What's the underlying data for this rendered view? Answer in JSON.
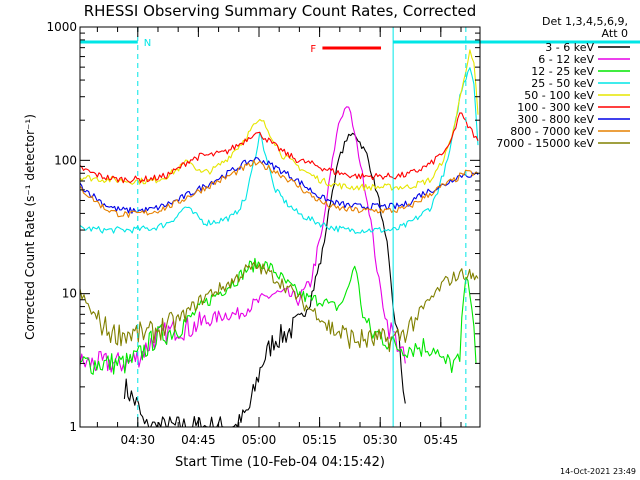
{
  "chart_data": {
    "type": "line",
    "title": "RHESSI Observing Summary Count Rates, Corrected",
    "ylabel": "Corrected Count Rate (s⁻¹ detector⁻¹)",
    "xlabel": "Start Time (10-Feb-04 04:15:42)",
    "x_units": "minutes after 04:15:42",
    "xlim": [
      0,
      99
    ],
    "ylim": [
      1,
      1000
    ],
    "yscale": "log",
    "x_ticks": [
      {
        "label": "04:30",
        "value": 14.3
      },
      {
        "label": "04:45",
        "value": 29.3
      },
      {
        "label": "05:00",
        "value": 44.3
      },
      {
        "label": "05:15",
        "value": 59.3
      },
      {
        "label": "05:30",
        "value": 74.3
      },
      {
        "label": "05:45",
        "value": 89.3
      }
    ],
    "y_ticks": [
      {
        "label": "1",
        "value": 1
      },
      {
        "label": "10",
        "value": 10
      },
      {
        "label": "100",
        "value": 100
      },
      {
        "label": "1000",
        "value": 1000
      }
    ],
    "legend": {
      "header": [
        "Det 1,3,4,5,6,9,",
        "Att 0"
      ],
      "placement": "right"
    },
    "series": [
      {
        "name": "3 - 6 keV",
        "color": "#000000",
        "x": [
          11,
          14,
          16,
          18,
          20,
          24,
          27,
          30,
          33,
          36,
          39,
          42,
          45,
          48,
          51,
          54,
          57,
          60,
          62,
          64,
          66,
          68,
          71,
          74,
          76,
          77.5,
          79,
          80.5
        ],
        "y": [
          2,
          1.5,
          1,
          1,
          1,
          1,
          1,
          1,
          1,
          1,
          1,
          1.4,
          3,
          4.5,
          5,
          6,
          9,
          20,
          50,
          100,
          145,
          160,
          110,
          50,
          22,
          8,
          4,
          1.5
        ]
      },
      {
        "name": "6 - 12 keV",
        "color": "#e600e6",
        "x": [
          0,
          3,
          6,
          9,
          12,
          15,
          18,
          21,
          24,
          27,
          30,
          33,
          36,
          39,
          42,
          45,
          48,
          51,
          54,
          57,
          60,
          62,
          64,
          66,
          67,
          69,
          72,
          74,
          76,
          77.5,
          79,
          80.5
        ],
        "y": [
          3,
          3,
          3,
          3,
          3,
          3.5,
          4.5,
          5,
          5.5,
          5.5,
          6,
          6.5,
          7,
          7,
          8,
          9,
          10,
          10,
          9,
          12,
          30,
          80,
          190,
          260,
          220,
          110,
          35,
          12,
          6,
          5,
          4,
          3
        ]
      },
      {
        "name": "12 - 25 keV",
        "color": "#00e600",
        "x": [
          0,
          6,
          12,
          15,
          18,
          21,
          24,
          27,
          30,
          33,
          36,
          39,
          42,
          45,
          48,
          51,
          54,
          57,
          60,
          62,
          64,
          66,
          68,
          70,
          72,
          74,
          76,
          78,
          80,
          82,
          84,
          86,
          88,
          89.5,
          91,
          92.5,
          94,
          95,
          96,
          97,
          98
        ],
        "y": [
          3,
          3,
          3,
          3.5,
          4.5,
          5,
          5.5,
          6.5,
          8,
          9.5,
          11,
          13,
          16,
          17,
          15,
          12,
          10,
          9,
          9,
          8,
          8,
          10,
          17,
          7,
          5,
          5,
          4.5,
          4,
          4,
          4,
          4,
          4,
          4,
          3,
          3,
          3,
          3,
          10,
          14,
          8,
          3
        ]
      },
      {
        "name": "25 - 50 keV",
        "color": "#00e6e6",
        "x": [
          0,
          6,
          12,
          18,
          21,
          24,
          26,
          28,
          31,
          34,
          38,
          41,
          43,
          44.5,
          46,
          48,
          51,
          54,
          57,
          60,
          63,
          66,
          69,
          72,
          75,
          78,
          81,
          84,
          87,
          89,
          91,
          92.5,
          94,
          95.5,
          96.5,
          97.5,
          98.5
        ],
        "y": [
          31,
          30,
          30,
          31,
          33,
          38,
          45,
          40,
          34,
          35,
          38,
          52,
          95,
          160,
          110,
          62,
          48,
          40,
          36,
          33,
          31,
          30,
          30,
          30,
          30,
          30,
          33,
          38,
          45,
          65,
          100,
          160,
          300,
          420,
          520,
          380,
          130
        ]
      },
      {
        "name": "50 - 100 keV",
        "color": "#e6e600",
        "x": [
          0,
          6,
          12,
          18,
          21,
          24,
          27,
          30,
          33,
          36,
          40,
          43,
          45,
          47,
          50,
          54,
          57,
          60,
          63,
          66,
          69,
          72,
          75,
          78,
          81,
          84,
          87,
          89,
          91,
          93,
          95,
          96.5,
          97.5,
          98.5
        ],
        "y": [
          75,
          72,
          70,
          70,
          75,
          85,
          100,
          80,
          85,
          100,
          135,
          180,
          200,
          160,
          110,
          90,
          78,
          70,
          66,
          63,
          63,
          63,
          63,
          63,
          63,
          67,
          72,
          90,
          120,
          200,
          420,
          640,
          520,
          220
        ]
      },
      {
        "name": "100 - 300 keV",
        "color": "#ff0000",
        "x": [
          0,
          3,
          6,
          9,
          12,
          15,
          18,
          21,
          24,
          27,
          30,
          33,
          36,
          40,
          43,
          45,
          48,
          51,
          54,
          57,
          60,
          63,
          66,
          69,
          72,
          75,
          78,
          81,
          84,
          87,
          89,
          91,
          92.5,
          94,
          95.5,
          97,
          98.5
        ],
        "y": [
          88,
          80,
          75,
          72,
          72,
          72,
          73,
          76,
          85,
          100,
          108,
          110,
          115,
          135,
          160,
          155,
          130,
          112,
          100,
          95,
          88,
          82,
          78,
          76,
          76,
          76,
          76,
          78,
          85,
          95,
          110,
          120,
          160,
          230,
          190,
          165,
          140
        ]
      },
      {
        "name": "300 - 800 keV",
        "color": "#0000e6",
        "x": [
          0,
          3,
          6,
          9,
          12,
          15,
          18,
          21,
          24,
          27,
          30,
          33,
          36,
          40,
          43,
          45,
          48,
          51,
          54,
          57,
          60,
          63,
          66,
          69,
          72,
          75,
          78,
          81,
          84,
          87,
          90,
          93,
          95,
          98.5
        ],
        "y": [
          65,
          55,
          47,
          43,
          42,
          42,
          43,
          46,
          50,
          56,
          62,
          70,
          78,
          92,
          102,
          100,
          90,
          80,
          70,
          60,
          52,
          48,
          46,
          45,
          45,
          45,
          45,
          47,
          55,
          60,
          65,
          75,
          78,
          78
        ]
      },
      {
        "name": "800 - 7000 keV",
        "color": "#e68000",
        "x": [
          0,
          3,
          6,
          9,
          12,
          15,
          18,
          21,
          24,
          27,
          30,
          33,
          36,
          40,
          43,
          45,
          48,
          51,
          54,
          57,
          60,
          63,
          66,
          69,
          72,
          75,
          78,
          81,
          84,
          87,
          90,
          93,
          95,
          98.5
        ],
        "y": [
          62,
          52,
          44,
          40,
          39,
          40,
          41,
          44,
          48,
          54,
          60,
          67,
          74,
          86,
          95,
          92,
          84,
          74,
          64,
          55,
          48,
          44,
          43,
          42,
          42,
          42,
          42,
          44,
          50,
          57,
          65,
          72,
          80,
          80
        ]
      },
      {
        "name": "7000 - 15000 keV",
        "color": "#808000",
        "x": [
          0,
          2,
          5,
          8,
          11,
          14,
          17,
          20,
          23,
          26,
          29,
          32,
          35,
          38,
          41,
          44,
          47,
          50,
          53,
          56,
          59,
          62,
          65,
          68,
          71,
          74,
          77,
          80,
          82,
          84,
          86,
          88,
          90,
          92,
          94,
          96,
          98.5
        ],
        "y": [
          10,
          8,
          6,
          5,
          5,
          5,
          5,
          5.5,
          6,
          7,
          8.5,
          10,
          11,
          12.5,
          15,
          16,
          14,
          12,
          10,
          8,
          7,
          5.5,
          5,
          4.5,
          4.5,
          4.5,
          4.5,
          5,
          6,
          7,
          8.5,
          10,
          12,
          13,
          14,
          14,
          13
        ]
      }
    ],
    "annotations": [
      {
        "text": "N",
        "color": "#00e6e6"
      },
      {
        "text": "F",
        "color": "#ff0000"
      }
    ],
    "footer_timestamp": "14-Oct-2021 23:49"
  }
}
